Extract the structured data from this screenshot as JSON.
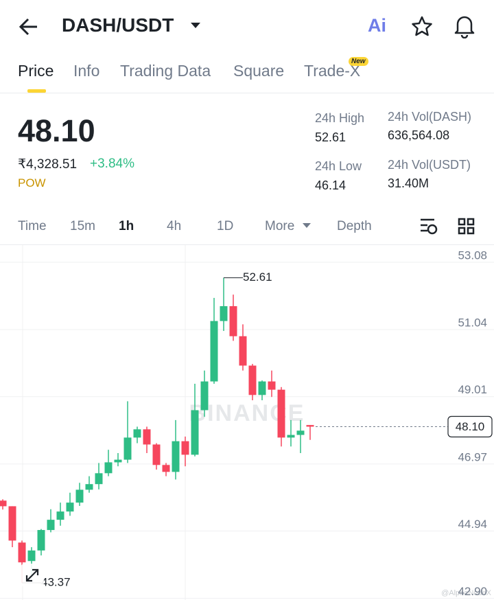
{
  "header": {
    "pair": "DASH/USDT",
    "ai": "Ai"
  },
  "tabs": [
    "Price",
    "Info",
    "Trading Data",
    "Square",
    "Trade-X"
  ],
  "new_badge": "New",
  "summary": {
    "price": "48.10",
    "fiat": "₹4,328.51",
    "change": "+3.84%",
    "tag": "POW",
    "stats": [
      {
        "label": "24h High",
        "value": "52.61"
      },
      {
        "label": "24h Vol(DASH)",
        "value": "636,564.08"
      },
      {
        "label": "24h Low",
        "value": "46.14"
      },
      {
        "label": "24h Vol(USDT)",
        "value": "31.40M"
      }
    ]
  },
  "intervals": [
    "Time",
    "15m",
    "1h",
    "4h",
    "1D",
    "More",
    "Depth"
  ],
  "chart_data": {
    "type": "candlestick",
    "open": [
      45.86,
      45.69,
      44.59,
      44.03,
      44.35,
      44.97,
      45.28,
      45.53,
      45.8,
      46.19,
      46.36,
      46.69,
      47.02,
      47.1,
      47.77,
      48.02,
      47.56,
      46.94,
      46.73,
      47.66,
      47.25,
      48.6,
      49.47,
      51.3,
      51.75,
      50.84,
      49.95,
      49.06,
      49.47,
      49.22,
      47.77,
      47.85,
      48.15
    ],
    "high": [
      45.9,
      45.69,
      44.65,
      44.45,
      45.0,
      45.6,
      45.8,
      46.1,
      46.4,
      46.6,
      47.0,
      47.4,
      47.3,
      48.87,
      48.1,
      48.1,
      47.6,
      47.0,
      48.3,
      47.8,
      49.4,
      49.8,
      52.0,
      52.61,
      52.1,
      51.2,
      50.0,
      49.5,
      49.8,
      49.3,
      48.3,
      48.3,
      48.15
    ],
    "low": [
      45.59,
      44.45,
      43.37,
      43.6,
      44.2,
      44.9,
      45.1,
      45.4,
      45.7,
      46.1,
      46.2,
      46.6,
      46.9,
      47.0,
      47.6,
      47.3,
      46.8,
      46.6,
      46.5,
      46.9,
      47.2,
      48.4,
      49.4,
      51.0,
      50.7,
      49.8,
      48.9,
      48.9,
      49.0,
      47.5,
      47.5,
      47.3,
      47.7
    ],
    "close": [
      45.69,
      44.65,
      43.99,
      44.35,
      44.97,
      45.28,
      45.53,
      45.8,
      46.19,
      46.36,
      46.69,
      47.02,
      47.1,
      47.77,
      48.02,
      47.56,
      46.94,
      46.73,
      47.66,
      47.25,
      48.6,
      49.47,
      51.3,
      51.75,
      50.84,
      49.95,
      49.06,
      49.47,
      49.22,
      47.77,
      47.85,
      47.98,
      48.1
    ],
    "up_color": "#2ebd85",
    "down_color": "#f6465d",
    "ylim": [
      42.85,
      53.6
    ],
    "yticks": [
      53.08,
      51.04,
      49.01,
      46.97,
      44.94,
      {
        "value": 42.9,
        "label": "42.90"
      }
    ],
    "grid": true,
    "max_annotation": 52.61,
    "min_annotation": 43.37,
    "last_price": {
      "value": 48.1,
      "label": "48.10"
    },
    "watermark": "BINANCE",
    "credit": "@AlphaNodeX"
  }
}
